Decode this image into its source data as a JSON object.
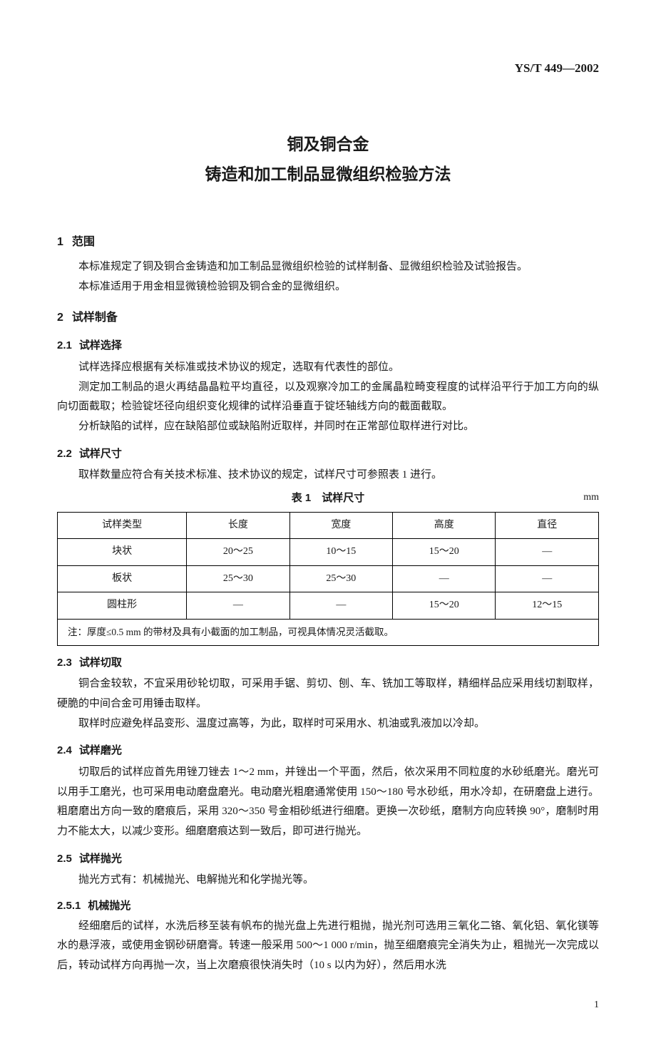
{
  "document": {
    "standard_code": "YS/T 449—2002",
    "title_line1": "铜及铜合金",
    "title_line2": "铸造和加工制品显微组织检验方法",
    "page_number": "1"
  },
  "sections": {
    "s1": {
      "num": "1",
      "title": "范围",
      "p1": "本标准规定了铜及铜合金铸造和加工制品显微组织检验的试样制备、显微组织检验及试验报告。",
      "p2": "本标准适用于用金相显微镜检验铜及铜合金的显微组织。"
    },
    "s2": {
      "num": "2",
      "title": "试样制备"
    },
    "s21": {
      "num": "2.1",
      "title": "试样选择",
      "p1": "试样选择应根据有关标准或技术协议的规定，选取有代表性的部位。",
      "p2": "测定加工制品的退火再结晶晶粒平均直径，以及观察冷加工的金属晶粒畸变程度的试样沿平行于加工方向的纵向切面截取；检验锭坯径向组织变化规律的试样沿垂直于锭坯轴线方向的截面截取。",
      "p3": "分析缺陷的试样，应在缺陷部位或缺陷附近取样，并同时在正常部位取样进行对比。"
    },
    "s22": {
      "num": "2.2",
      "title": "试样尺寸",
      "p1": "取样数量应符合有关技术标准、技术协议的规定，试样尺寸可参照表 1 进行。"
    },
    "s23": {
      "num": "2.3",
      "title": "试样切取",
      "p1": "铜合金较软，不宜采用砂轮切取，可采用手锯、剪切、刨、车、铣加工等取样，精细样品应采用线切割取样，硬脆的中间合金可用锤击取样。",
      "p2": "取样时应避免样品变形、温度过高等，为此，取样时可采用水、机油或乳液加以冷却。"
    },
    "s24": {
      "num": "2.4",
      "title": "试样磨光",
      "p1": "切取后的试样应首先用锉刀锉去 1～2 mm，并锉出一个平面，然后，依次采用不同粒度的水砂纸磨光。磨光可以用手工磨光，也可采用电动磨盘磨光。电动磨光粗磨通常使用 150～180 号水砂纸，用水冷却，在研磨盘上进行。粗磨磨出方向一致的磨痕后，采用 320～350 号金相砂纸进行细磨。更换一次砂纸，磨制方向应转换 90°，磨制时用力不能太大，以减少变形。细磨磨痕达到一致后，即可进行抛光。"
    },
    "s25": {
      "num": "2.5",
      "title": "试样抛光",
      "p1": "抛光方式有：机械抛光、电解抛光和化学抛光等。"
    },
    "s251": {
      "num": "2.5.1",
      "title": "机械抛光",
      "p1": "经细磨后的试样，水洗后移至装有帆布的抛光盘上先进行粗抛，抛光剂可选用三氧化二铬、氧化铝、氧化镁等水的悬浮液，或使用金钢砂研磨膏。转速一般采用 500～1 000 r/min，抛至细磨痕完全消失为止，粗抛光一次完成以后，转动试样方向再抛一次，当上次磨痕很快消失时（10 s 以内为好），然后用水洗"
    }
  },
  "table1": {
    "caption": "表 1　试样尺寸",
    "unit": "mm",
    "headers": [
      "试样类型",
      "长度",
      "宽度",
      "高度",
      "直径"
    ],
    "rows": [
      [
        "块状",
        "20～25",
        "10～15",
        "15～20",
        "—"
      ],
      [
        "板状",
        "25～30",
        "25～30",
        "—",
        "—"
      ],
      [
        "圆柱形",
        "—",
        "—",
        "15～20",
        "12～15"
      ]
    ],
    "note": "注：厚度≤0.5 mm 的带材及具有小截面的加工制品，可视具体情况灵活截取。"
  }
}
